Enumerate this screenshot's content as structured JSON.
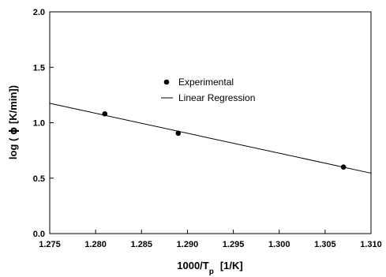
{
  "chart_data": {
    "type": "scatter",
    "title": "",
    "xlabel": {
      "main": "1000/T",
      "subscript": "p",
      "unit": "[1/K]"
    },
    "ylabel": {
      "prefix": "log ( ",
      "symbol": "ϕ",
      "suffix": " [K/min])"
    },
    "xlim": [
      1.275,
      1.31
    ],
    "ylim": [
      0.0,
      2.0
    ],
    "xticks": [
      "1.275",
      "1.280",
      "1.285",
      "1.290",
      "1.295",
      "1.300",
      "1.305",
      "1.310"
    ],
    "yticks": [
      "0.0",
      "0.5",
      "1.0",
      "1.5",
      "2.0"
    ],
    "grid": false,
    "legend_position": "upper-right-inside",
    "series": [
      {
        "name": "Experimental",
        "kind": "scatter",
        "marker": "filled-circle",
        "color": "#000000",
        "points": [
          {
            "x": 1.281,
            "y": 1.08
          },
          {
            "x": 1.289,
            "y": 0.905
          },
          {
            "x": 1.307,
            "y": 0.6
          }
        ]
      },
      {
        "name": "Linear Regression",
        "kind": "line",
        "color": "#000000",
        "points": [
          {
            "x": 1.275,
            "y": 1.175
          },
          {
            "x": 1.31,
            "y": 0.545
          }
        ]
      }
    ]
  }
}
